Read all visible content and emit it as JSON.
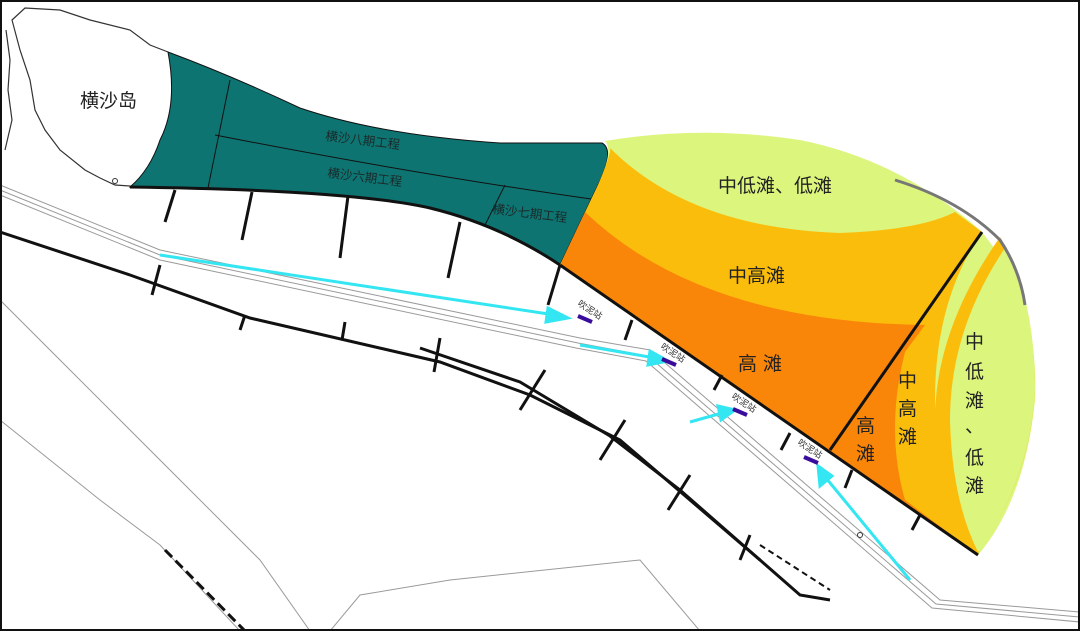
{
  "island": {
    "label": "横沙岛"
  },
  "projects": [
    {
      "label": "横沙八期工程"
    },
    {
      "label": "横沙六期工程"
    },
    {
      "label": "横沙七期工程"
    }
  ],
  "zones": {
    "top_low": "中低滩、低滩",
    "mid_high": "中高滩",
    "high": "高 滩",
    "right_high": [
      "高",
      "滩"
    ],
    "right_mid_high": [
      "中",
      "高",
      "滩"
    ],
    "right_low": [
      "中",
      "低",
      "滩",
      "、",
      "低",
      "滩"
    ]
  },
  "stations": [
    {
      "label": "吹泥站"
    },
    {
      "label": "吹泥站"
    },
    {
      "label": "吹泥站"
    },
    {
      "label": "吹泥站"
    }
  ],
  "colors": {
    "project_area": "#0e7471",
    "low_flat": "#dcf57c",
    "mid_high_flat": "#fbbd0c",
    "high_flat": "#f98609",
    "arrow": "#33e6f2",
    "station": "#3a0c9c"
  }
}
